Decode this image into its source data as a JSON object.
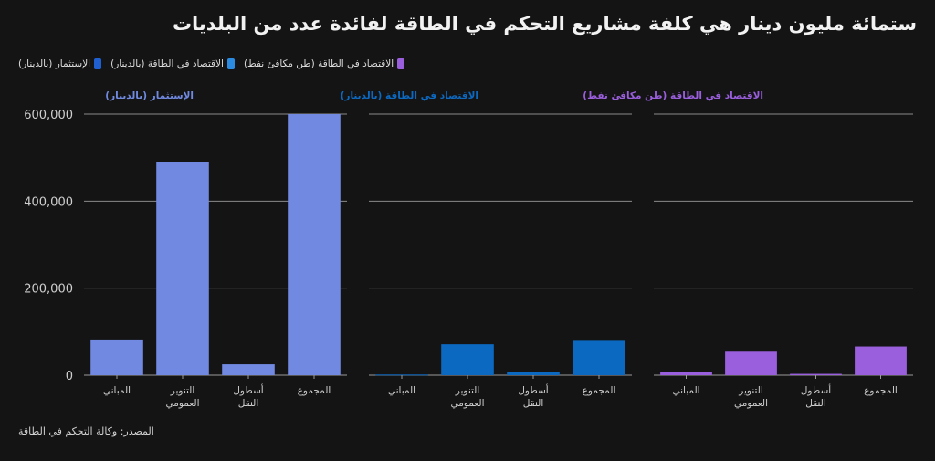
{
  "title": "ستمائة مليون دينار هي كلفة مشاريع التحكم في الطاقة لفائدة عدد من البلديات",
  "source": "المصدر: وكالة التحكم في الطاقة",
  "legend": [
    {
      "label": "الإستثمار (بالدينار)",
      "color": "#1f5fcf"
    },
    {
      "label": "الاقتصاد في الطاقة (بالدينار)",
      "color": "#2b8be0"
    },
    {
      "label": "الاقتصاد في الطاقة (طن مكافئ نفط)",
      "color": "#9a5fdd"
    }
  ],
  "chart_data": {
    "type": "bar",
    "categories": [
      "المباني",
      "التنوير العمومي",
      "أسطول النقل",
      "المجموع"
    ],
    "ylim": [
      0,
      600000
    ],
    "yticks": [
      0,
      200000,
      400000,
      600000
    ],
    "ytick_labels": [
      "0",
      "200,000",
      "400,000",
      "600,000"
    ],
    "grid": true,
    "legend_position": "top-left",
    "series": [
      {
        "name": "الإستثمار (بالدينار)",
        "color": "#7189e0",
        "values": [
          82000,
          490000,
          25000,
          600000
        ]
      },
      {
        "name": "الاقتصاد في الطاقة (بالدينار)",
        "color": "#0c69c2",
        "values": [
          1500,
          71000,
          8000,
          81000
        ]
      },
      {
        "name": "الاقتصاد في الطاقة (طن مكافئ نفط)",
        "color": "#9a5fdd",
        "values": [
          8000,
          54000,
          3000,
          66000
        ]
      }
    ]
  }
}
